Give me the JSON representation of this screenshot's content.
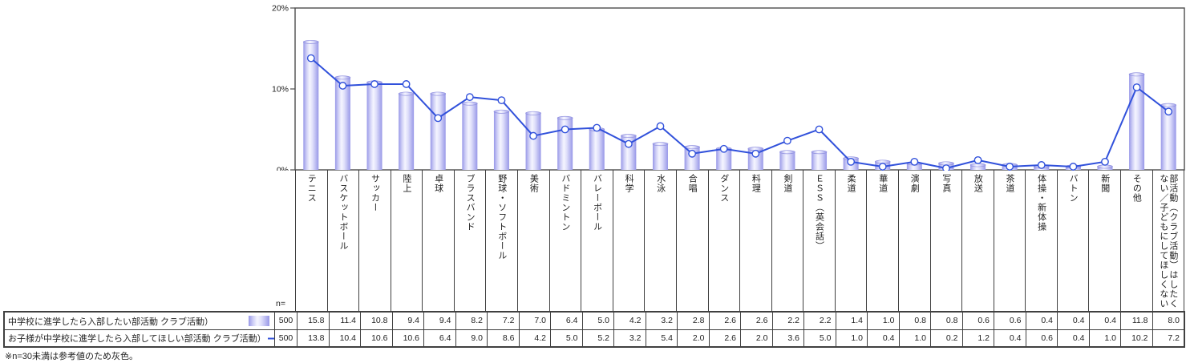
{
  "chart_data": {
    "type": "bar+line",
    "categories": [
      "テニス",
      "バスケットボール",
      "サッカー",
      "陸上",
      "卓球",
      "ブラスバンド",
      "野球・ソフトボール",
      "美術",
      "バドミントン",
      "バレーボール",
      "科学",
      "水泳",
      "合唱",
      "ダンス",
      "料理",
      "剣道",
      "ＥＳＳ（英会話）",
      "柔道",
      "華道",
      "演劇",
      "写真",
      "放送",
      "茶道",
      "体操・新体操",
      "バトン",
      "新聞",
      "その他",
      "部活動（クラブ活動）はしたくない／子どもにしてほしくない"
    ],
    "series": [
      {
        "name": "中学校に進学したら入部したい部活動 クラブ活動）",
        "type": "bar",
        "n": "500",
        "values": [
          15.8,
          11.4,
          10.8,
          9.4,
          9.4,
          8.2,
          7.2,
          7.0,
          6.4,
          5.0,
          4.2,
          3.2,
          2.8,
          2.6,
          2.6,
          2.2,
          2.2,
          1.4,
          1.0,
          0.8,
          0.8,
          0.6,
          0.6,
          0.4,
          0.4,
          0.4,
          11.8,
          8.0
        ]
      },
      {
        "name": "お子様が中学校に進学したら入部してほしい部活動 クラブ活動）",
        "type": "line",
        "n": "500",
        "values": [
          13.8,
          10.4,
          10.6,
          10.6,
          6.4,
          9.0,
          8.6,
          4.2,
          5.0,
          5.2,
          3.2,
          5.4,
          2.0,
          2.6,
          2.0,
          3.6,
          5.0,
          1.0,
          0.4,
          1.0,
          0.2,
          1.2,
          0.4,
          0.6,
          0.4,
          1.0,
          10.2,
          7.2
        ]
      }
    ],
    "ylim": [
      0,
      20
    ],
    "yticks": [
      {
        "value": 0,
        "label": "0%"
      },
      {
        "value": 10,
        "label": "10%"
      },
      {
        "value": 20,
        "label": "20%"
      }
    ],
    "grid": false,
    "legend_position": "bottom-table",
    "colors": {
      "bar_edge": "#9898e8",
      "bar_center": "#f5f5ff",
      "bar_cap_stroke": "#8f8fde",
      "line": "#3151db",
      "marker_fill": "#ffffff",
      "axis": "#4d4d4d",
      "text": "#222222"
    }
  },
  "table": {
    "n_header": "n="
  },
  "footnote": "※n=30未満は参考値のため灰色。"
}
